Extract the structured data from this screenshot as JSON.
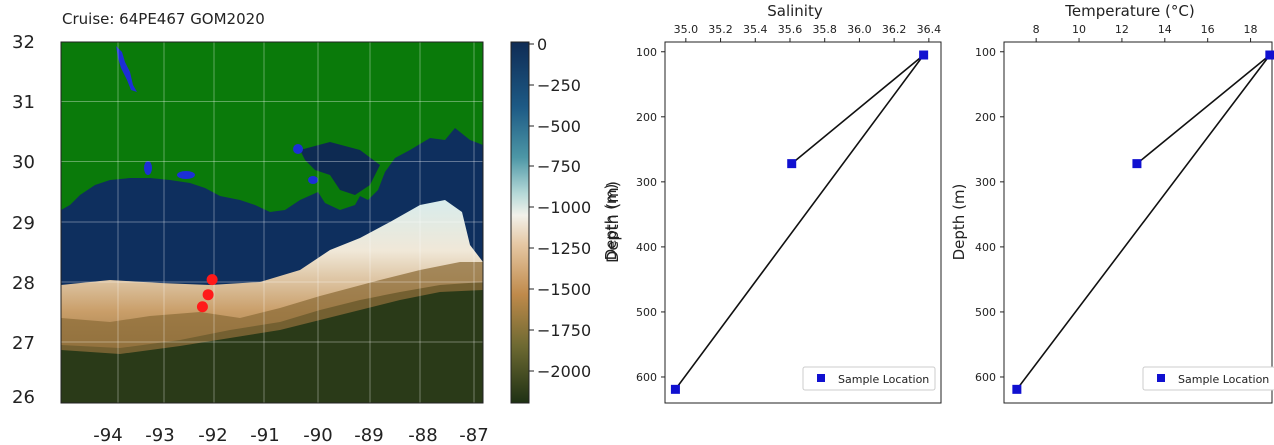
{
  "map": {
    "subtitle": "Cruise: 64PE467 GOM2020",
    "x_ticks": [
      "-94",
      "-93",
      "-92",
      "-91",
      "-90",
      "-89",
      "-88",
      "-87"
    ],
    "y_ticks": [
      "32",
      "31",
      "30",
      "29",
      "28",
      "27",
      "26"
    ],
    "colorbar_label": "Depth (m)",
    "colorbar_ticks": [
      "0",
      "−250",
      "−500",
      "−750",
      "−1000",
      "−1250",
      "−1500",
      "−1750",
      "−2000"
    ],
    "colors": {
      "land": "#0a7a0a",
      "deep_water": "#0e2f5e",
      "lakes": "#1c2fd6",
      "sample_marker": "#ff1a1a"
    }
  },
  "chart_data": [
    {
      "type": "map",
      "xlim": [
        -94.4,
        -87
      ],
      "ylim": [
        26,
        32
      ],
      "samples": [
        {
          "lon": -91.75,
          "lat": 28.05
        },
        {
          "lon": -91.82,
          "lat": 27.8
        },
        {
          "lon": -91.92,
          "lat": 27.6
        }
      ]
    },
    {
      "type": "line",
      "title": "Salinity",
      "ylabel": "Depth (m)",
      "xlim": [
        34.88,
        36.47
      ],
      "ylim": [
        640,
        85
      ],
      "x_ticks": [
        "35.0",
        "35.2",
        "35.4",
        "35.6",
        "35.8",
        "36.0",
        "36.2",
        "36.4"
      ],
      "y_ticks": [
        "100",
        "200",
        "300",
        "400",
        "500",
        "600"
      ],
      "legend": "Sample Location",
      "legend_position": "lower right",
      "points": [
        {
          "x": 35.61,
          "y": 272
        },
        {
          "x": 36.37,
          "y": 105
        },
        {
          "x": 34.94,
          "y": 619
        }
      ]
    },
    {
      "type": "line",
      "title": "Temperature (°C)",
      "ylabel": "Depth (m)",
      "xlim": [
        6.5,
        19.0
      ],
      "ylim": [
        640,
        85
      ],
      "x_ticks": [
        "8",
        "10",
        "12",
        "14",
        "16",
        "18"
      ],
      "y_ticks": [
        "100",
        "200",
        "300",
        "400",
        "500",
        "600"
      ],
      "legend": "Sample Location",
      "legend_position": "lower right",
      "points": [
        {
          "x": 12.7,
          "y": 272
        },
        {
          "x": 18.9,
          "y": 105
        },
        {
          "x": 7.1,
          "y": 619
        }
      ]
    }
  ]
}
